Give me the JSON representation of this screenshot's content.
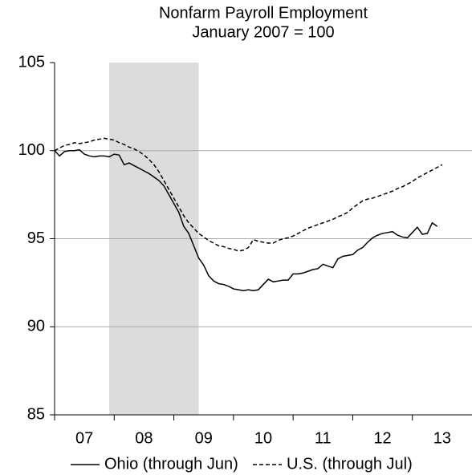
{
  "chart_data": {
    "type": "line",
    "title": "Nonfarm Payroll Employment",
    "subtitle": "January 2007 = 100",
    "x": [
      "2007-01",
      "2007-02",
      "2007-03",
      "2007-04",
      "2007-05",
      "2007-06",
      "2007-07",
      "2007-08",
      "2007-09",
      "2007-10",
      "2007-11",
      "2007-12",
      "2008-01",
      "2008-02",
      "2008-03",
      "2008-04",
      "2008-05",
      "2008-06",
      "2008-07",
      "2008-08",
      "2008-09",
      "2008-10",
      "2008-11",
      "2008-12",
      "2009-01",
      "2009-02",
      "2009-03",
      "2009-04",
      "2009-05",
      "2009-06",
      "2009-07",
      "2009-08",
      "2009-09",
      "2009-10",
      "2009-11",
      "2009-12",
      "2010-01",
      "2010-02",
      "2010-03",
      "2010-04",
      "2010-05",
      "2010-06",
      "2010-07",
      "2010-08",
      "2010-09",
      "2010-10",
      "2010-11",
      "2010-12",
      "2011-01",
      "2011-02",
      "2011-03",
      "2011-04",
      "2011-05",
      "2011-06",
      "2011-07",
      "2011-08",
      "2011-09",
      "2011-10",
      "2011-11",
      "2011-12",
      "2012-01",
      "2012-02",
      "2012-03",
      "2012-04",
      "2012-05",
      "2012-06",
      "2012-07",
      "2012-08",
      "2012-09",
      "2012-10",
      "2012-11",
      "2012-12",
      "2013-01",
      "2013-02",
      "2013-03",
      "2013-04",
      "2013-05",
      "2013-06",
      "2013-07"
    ],
    "series": [
      {
        "name": "Ohio (through Jun)",
        "color": "#000000",
        "dash": false,
        "values": [
          100,
          99.7,
          99.95,
          100,
          100,
          100.05,
          99.8,
          99.7,
          99.65,
          99.7,
          99.7,
          99.65,
          99.8,
          99.75,
          99.2,
          99.3,
          99.15,
          99.0,
          98.85,
          98.7,
          98.5,
          98.3,
          98.0,
          97.5,
          97.0,
          96.5,
          95.7,
          95.3,
          94.6,
          93.9,
          93.5,
          92.9,
          92.6,
          92.45,
          92.4,
          92.3,
          92.15,
          92.1,
          92.05,
          92.1,
          92.05,
          92.1,
          92.4,
          92.7,
          92.55,
          92.6,
          92.65,
          92.65,
          93.0,
          93.0,
          93.05,
          93.15,
          93.25,
          93.3,
          93.55,
          93.45,
          93.35,
          93.85,
          94.0,
          94.05,
          94.1,
          94.35,
          94.5,
          94.8,
          95.05,
          95.2,
          95.3,
          95.35,
          95.4,
          95.2,
          95.1,
          95.05,
          95.35,
          95.65,
          95.25,
          95.3,
          95.9,
          95.7,
          null
        ]
      },
      {
        "name": "U.S. (through Jul)",
        "color": "#000000",
        "dash": true,
        "values": [
          100,
          100.15,
          100.3,
          100.35,
          100.45,
          100.4,
          100.45,
          100.5,
          100.6,
          100.65,
          100.7,
          100.65,
          100.6,
          100.45,
          100.35,
          100.2,
          100.1,
          99.95,
          99.75,
          99.5,
          99.2,
          98.8,
          98.3,
          97.8,
          97.3,
          96.8,
          96.3,
          95.9,
          95.6,
          95.3,
          95.1,
          94.9,
          94.75,
          94.6,
          94.55,
          94.45,
          94.4,
          94.3,
          94.35,
          94.5,
          94.95,
          94.85,
          94.8,
          94.75,
          94.75,
          94.9,
          95.0,
          95.05,
          95.15,
          95.3,
          95.45,
          95.6,
          95.7,
          95.8,
          95.9,
          96.0,
          96.1,
          96.25,
          96.35,
          96.5,
          96.75,
          96.95,
          97.15,
          97.25,
          97.3,
          97.4,
          97.5,
          97.6,
          97.7,
          97.85,
          97.95,
          98.1,
          98.25,
          98.45,
          98.6,
          98.75,
          98.9,
          99.05,
          99.2
        ]
      }
    ],
    "xlim": [
      "2007-01",
      "2014-01"
    ],
    "xticks": [
      {
        "value": "2007",
        "label": "07"
      },
      {
        "value": "2008",
        "label": "08"
      },
      {
        "value": "2009",
        "label": "09"
      },
      {
        "value": "2010",
        "label": "10"
      },
      {
        "value": "2011",
        "label": "11"
      },
      {
        "value": "2012",
        "label": "12"
      },
      {
        "value": "2013",
        "label": "13"
      }
    ],
    "ylim": [
      85,
      105
    ],
    "yticks": [
      85,
      90,
      95,
      100,
      105
    ],
    "grid": true,
    "shaded_span": [
      "2007-12",
      "2009-06"
    ],
    "shade_color": "#dcdcdc",
    "legend": "bottom"
  }
}
